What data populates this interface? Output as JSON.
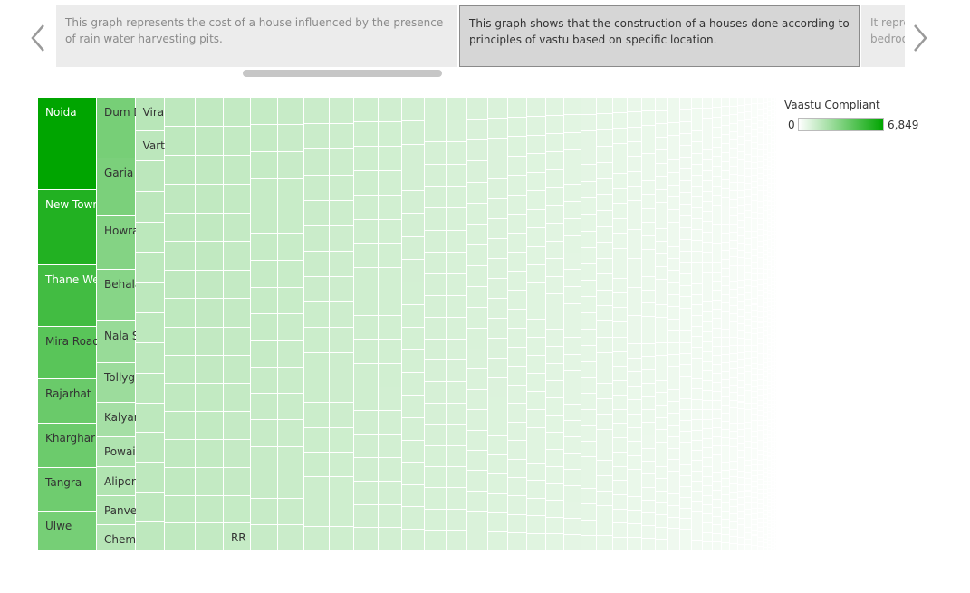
{
  "story": {
    "points": [
      {
        "text": "This graph represents the cost of a house influenced by the presence of rain water harvesting pits."
      },
      {
        "text": "This graph shows that the construction of a houses done according to principles of vastu based on specific location."
      },
      {
        "text": "It repre\nbedroo"
      }
    ],
    "selected_index": 1,
    "scroll_position": 0.22
  },
  "icons": {
    "prev": "chevron-left-icon",
    "next": "chevron-right-icon"
  },
  "colors": {
    "scale_min": "#ffffff",
    "scale_max": "#00a500",
    "selected_border": "#8a8a8a"
  },
  "legend": {
    "title": "Vaastu Compliant",
    "min_label": "0",
    "max_label": "6,849"
  },
  "chart_data": {
    "type": "treemap",
    "measure": "Vaastu Compliant",
    "color_range": [
      0,
      6849
    ],
    "labeled_locations": [
      {
        "name": "Noida",
        "value": 6849
      },
      {
        "name": "New Town",
        "value": 5650
      },
      {
        "name": "Thane West",
        "value": 4600
      },
      {
        "name": "Mira Road East",
        "value": 3850
      },
      {
        "name": "Rajarhat",
        "value": 3350
      },
      {
        "name": "Kharghar",
        "value": 3300
      },
      {
        "name": "Ulwe",
        "value": 3000
      },
      {
        "name": "Tangra",
        "value": 3200
      },
      {
        "name": "Dum Dum",
        "value": 2950
      },
      {
        "name": "Garia",
        "value": 2850
      },
      {
        "name": "Howrah",
        "value": 2600
      },
      {
        "name": "Behala",
        "value": 2500
      },
      {
        "name": "Nala Sopara",
        "value": 2050
      },
      {
        "name": "Tollygunge",
        "value": 1950
      },
      {
        "name": "Kalyan West",
        "value": 1700
      },
      {
        "name": "Powai",
        "value": 1450
      },
      {
        "name": "Alipore",
        "value": 1400
      },
      {
        "name": "Panvel",
        "value": 1400
      },
      {
        "name": "Chembur",
        "value": 1300
      },
      {
        "name": "Virar",
        "value": 1250
      },
      {
        "name": "Varthur",
        "value": 1150
      },
      {
        "name": "RR",
        "value": 950
      }
    ],
    "unlabeled_location_count": 1650
  }
}
